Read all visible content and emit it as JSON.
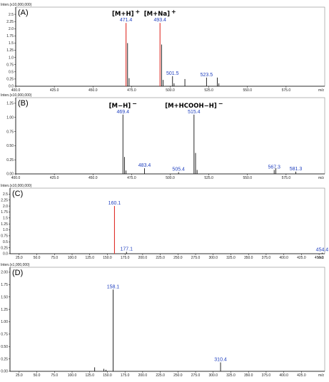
{
  "chart_data": [
    {
      "type": "bar",
      "panel_label": "(A)",
      "y_unit_label": "Inten.(x10,000,000)",
      "x_unit_label": "m/z",
      "xlim": [
        400,
        600
      ],
      "ylim": [
        0,
        2.75
      ],
      "x_ticks": [
        "400.0",
        "425.0",
        "450.0",
        "475.0",
        "500.0",
        "525.0",
        "550.0",
        "575.0"
      ],
      "y_ticks": [
        "0.0",
        "0.25",
        "0.5",
        "0.75",
        "1.0",
        "1.25",
        "1.5",
        "1.75",
        "2.0",
        "2.25",
        "2.5"
      ],
      "peaks": [
        {
          "x": 471.4,
          "y": 2.2,
          "color": "#e0302a"
        },
        {
          "x": 472.4,
          "y": 1.5,
          "color": "#111111"
        },
        {
          "x": 473.4,
          "y": 0.28,
          "color": "#111111"
        },
        {
          "x": 493.4,
          "y": 2.2,
          "color": "#e0302a"
        },
        {
          "x": 494.4,
          "y": 1.45,
          "color": "#111111"
        },
        {
          "x": 495.4,
          "y": 0.22,
          "color": "#111111"
        },
        {
          "x": 501.5,
          "y": 0.35,
          "color": "#111111"
        },
        {
          "x": 502.5,
          "y": 0.1,
          "color": "#111111"
        },
        {
          "x": 509.5,
          "y": 0.25,
          "color": "#111111"
        },
        {
          "x": 523.5,
          "y": 0.3,
          "color": "#111111"
        },
        {
          "x": 530.5,
          "y": 0.3,
          "color": "#111111"
        },
        {
          "x": 531.5,
          "y": 0.1,
          "color": "#111111"
        }
      ],
      "peak_labels": [
        {
          "x": 471.4,
          "y": 2.2,
          "text": "471.4"
        },
        {
          "x": 493.4,
          "y": 2.2,
          "text": "493.4"
        },
        {
          "x": 501.5,
          "y": 0.35,
          "text": "501.5"
        },
        {
          "x": 523.5,
          "y": 0.3,
          "text": "523.5"
        }
      ],
      "ion_labels": [
        {
          "x": 471.4,
          "text": "[M+H]",
          "sup": "+"
        },
        {
          "x": 493.4,
          "text": "[M+Na]",
          "sup": "+"
        }
      ]
    },
    {
      "type": "bar",
      "panel_label": "(B)",
      "y_unit_label": "Inten.(x10,000,000)",
      "x_unit_label": "m/z",
      "xlim": [
        400,
        600
      ],
      "ylim": [
        0,
        1.35
      ],
      "x_ticks": [
        "400.0",
        "425.0",
        "450.0",
        "475.0",
        "500.0",
        "525.0",
        "550.0",
        "575.0"
      ],
      "y_ticks": [
        "0.00",
        "0.25",
        "0.50",
        "0.75",
        "1.00",
        "1.25"
      ],
      "peaks": [
        {
          "x": 469.4,
          "y": 1.05,
          "color": "#111111"
        },
        {
          "x": 470.4,
          "y": 0.3,
          "color": "#111111"
        },
        {
          "x": 471.4,
          "y": 0.06,
          "color": "#111111"
        },
        {
          "x": 483.4,
          "y": 0.1,
          "color": "#111111"
        },
        {
          "x": 505.4,
          "y": 0.03,
          "color": "#111111"
        },
        {
          "x": 515.4,
          "y": 1.05,
          "color": "#111111"
        },
        {
          "x": 516.4,
          "y": 0.37,
          "color": "#111111"
        },
        {
          "x": 517.4,
          "y": 0.07,
          "color": "#111111"
        },
        {
          "x": 567.3,
          "y": 0.07,
          "color": "#111111"
        },
        {
          "x": 568.3,
          "y": 0.1,
          "color": "#111111"
        },
        {
          "x": 581.3,
          "y": 0.04,
          "color": "#111111"
        }
      ],
      "peak_labels": [
        {
          "x": 469.4,
          "y": 1.05,
          "text": "469.4"
        },
        {
          "x": 483.4,
          "y": 0.1,
          "text": "483.4"
        },
        {
          "x": 505.4,
          "y": 0.03,
          "text": "505.4"
        },
        {
          "x": 515.4,
          "y": 1.05,
          "text": "515.4"
        },
        {
          "x": 567.3,
          "y": 0.07,
          "text": "567.3"
        },
        {
          "x": 581.3,
          "y": 0.04,
          "text": "581.3"
        }
      ],
      "ion_labels": [
        {
          "x": 469.4,
          "text": "[M−H]",
          "sup": "−"
        },
        {
          "x": 515.4,
          "text": "[M+HCOOH−H]",
          "sup": "−"
        }
      ]
    },
    {
      "type": "bar",
      "panel_label": "(C)",
      "y_unit_label": "Inten.(x10,000,000)",
      "x_unit_label": "m/z",
      "xlim": [
        12,
        458
      ],
      "ylim": [
        0,
        2.75
      ],
      "x_ticks": [
        "25.0",
        "50.0",
        "75.0",
        "100.0",
        "125.0",
        "150.0",
        "175.0",
        "200.0",
        "225.0",
        "250.0",
        "275.0",
        "300.0",
        "325.0",
        "350.0",
        "375.0",
        "400.0",
        "425.0",
        "450.0"
      ],
      "y_ticks": [
        "0.0",
        "0.25",
        "0.5",
        "0.75",
        "1.0",
        "1.25",
        "1.5",
        "1.75",
        "2.0",
        "2.25",
        "2.5"
      ],
      "peaks": [
        {
          "x": 160.1,
          "y": 2.0,
          "color": "#e0302a"
        },
        {
          "x": 177.1,
          "y": 0.08,
          "color": "#111111"
        },
        {
          "x": 454.4,
          "y": 0.04,
          "color": "#111111"
        }
      ],
      "peak_labels": [
        {
          "x": 160.1,
          "y": 2.0,
          "text": "160.1"
        },
        {
          "x": 177.1,
          "y": 0.08,
          "text": "177.1"
        },
        {
          "x": 454.4,
          "y": 0.04,
          "text": "454.4"
        }
      ],
      "ion_labels": []
    },
    {
      "type": "bar",
      "panel_label": "(D)",
      "y_unit_label": "Inten.(x1,000,000)",
      "x_unit_label": "m/z",
      "xlim": [
        12,
        458
      ],
      "ylim": [
        0,
        2.1
      ],
      "x_ticks": [
        "25.0",
        "50.0",
        "75.0",
        "100.0",
        "125.0",
        "150.0",
        "175.0",
        "200.0",
        "225.0",
        "250.0",
        "275.0",
        "300.0",
        "325.0",
        "350.0",
        "375.0",
        "400.0",
        "425.0"
      ],
      "y_ticks": [
        "0.00",
        "0.25",
        "0.50",
        "0.75",
        "1.00",
        "1.25",
        "1.50",
        "1.75",
        "2.00"
      ],
      "peaks": [
        {
          "x": 132.0,
          "y": 0.08,
          "color": "#111111"
        },
        {
          "x": 145.0,
          "y": 0.05,
          "color": "#111111"
        },
        {
          "x": 148.0,
          "y": 0.03,
          "color": "#111111"
        },
        {
          "x": 158.1,
          "y": 1.65,
          "color": "#111111"
        },
        {
          "x": 310.4,
          "y": 0.18,
          "color": "#111111"
        }
      ],
      "peak_labels": [
        {
          "x": 158.1,
          "y": 1.65,
          "text": "158.1"
        },
        {
          "x": 310.4,
          "y": 0.18,
          "text": "310.4"
        }
      ],
      "ion_labels": []
    }
  ]
}
